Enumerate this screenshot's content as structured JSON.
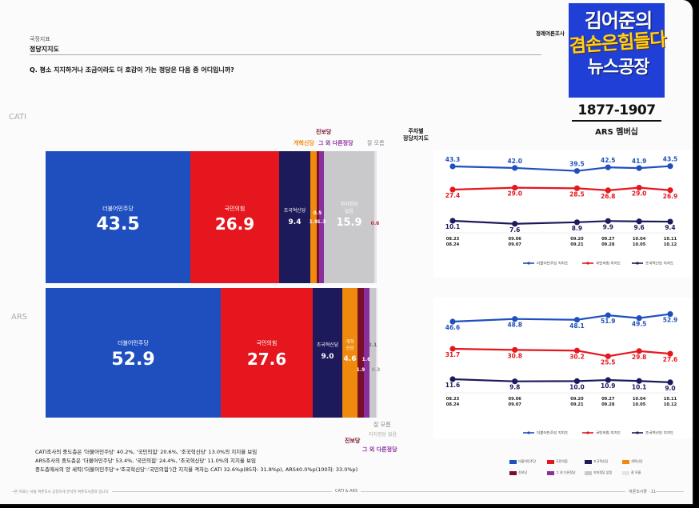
{
  "header": {
    "category": "국정지표",
    "title": "정당지지도",
    "question": "Q. 평소 지지하거나 조금이라도 더 호감이 가는 정당은 다음 중 어디입니까?",
    "source": "정례여론조사"
  },
  "logo": {
    "line1": "김어준의",
    "line2": "겸손은힘들다",
    "line3": "뉴스공장",
    "range": "1877-1907",
    "sub": "ARS 멤버십"
  },
  "sections": {
    "cati": "CATI",
    "ars": "ARS",
    "trend_title_line1": "주차별",
    "trend_title_line2": "정당지지도"
  },
  "colors": {
    "dem": "#1f4fbf",
    "ppp": "#e5161e",
    "rebuild": "#1d1a5c",
    "reform": "#f08a0c",
    "progressive": "#7a0f2b",
    "other": "#8a2f9e",
    "none": "#c9c9cc",
    "dk": "#e8e0ea"
  },
  "chart_data": [
    {
      "type": "bar",
      "title": "CATI",
      "orientation": "stacked-horizontal",
      "series": [
        {
          "name": "더불어민주당",
          "value": 43.5
        },
        {
          "name": "국민의힘",
          "value": 26.9
        },
        {
          "name": "조국혁신당",
          "value": 9.4
        },
        {
          "name": "개혁신당",
          "value": 1.9
        },
        {
          "name": "진보당",
          "value": 0.5
        },
        {
          "name": "그 외 다른정당",
          "value": 1.3
        },
        {
          "name": "지지정당 없음",
          "value": 15.9
        },
        {
          "name": "잘 모름",
          "value": 0.6
        }
      ],
      "callouts": {
        "reform": "개혁신당",
        "progressive": "진보당",
        "other": "그 외 다른정당",
        "dk": "잘 모름"
      },
      "big_labels": {
        "dem": "더불어민주당",
        "ppp": "국민의힘",
        "rebuild": "조국혁신당",
        "none_1": "지지정당",
        "none_2": "없음"
      },
      "values_text": {
        "dem": "43.5",
        "ppp": "26.9",
        "rebuild": "9.4",
        "reform": "1.9",
        "progressive": "0.5",
        "other": "1.3",
        "none": "15.9",
        "dk": "0.6"
      }
    },
    {
      "type": "bar",
      "title": "ARS",
      "orientation": "stacked-horizontal",
      "series": [
        {
          "name": "더불어민주당",
          "value": 52.9
        },
        {
          "name": "국민의힘",
          "value": 27.6
        },
        {
          "name": "조국혁신당",
          "value": 9.0
        },
        {
          "name": "개혁신당",
          "value": 4.6
        },
        {
          "name": "진보당",
          "value": 1.9
        },
        {
          "name": "그 외 다른정당",
          "value": 1.6
        },
        {
          "name": "지지정당 없음",
          "value": 2.1
        },
        {
          "name": "잘 모름",
          "value": 0.3
        }
      ],
      "callouts": {
        "progressive": "진보당",
        "other": "그 외 다른정당",
        "dk": "잘 모름",
        "none": "지지정당 없음"
      },
      "big_labels": {
        "dem": "더불어민주당",
        "ppp": "국민의힘",
        "rebuild": "조국혁신당",
        "reform_1": "개혁",
        "reform_2": "신당"
      },
      "values_text": {
        "dem": "52.9",
        "ppp": "27.6",
        "rebuild": "9.0",
        "reform": "4.6",
        "progressive": "1.9",
        "other": "1.6",
        "none": "2.1",
        "dk": "0.3"
      }
    },
    {
      "type": "line",
      "title": "CATI 주차별 정당지지도",
      "categories": [
        "08.23\n08.24",
        "09.06\n09.07",
        "09.20\n09.21",
        "09.27\n09.28",
        "10.04\n10.05",
        "10.11\n10.12"
      ],
      "x": [
        0,
        2,
        4,
        5,
        6,
        7
      ],
      "series": [
        {
          "name": "더불어민주당 지지도",
          "values": [
            43.3,
            42.0,
            39.5,
            42.5,
            41.9,
            43.5
          ]
        },
        {
          "name": "국민의힘 지지도",
          "values": [
            27.4,
            29.0,
            28.5,
            26.8,
            29.0,
            26.9
          ]
        },
        {
          "name": "조국혁신당 지지도",
          "values": [
            10.1,
            7.6,
            8.9,
            9.9,
            9.6,
            9.4
          ]
        }
      ]
    },
    {
      "type": "line",
      "title": "ARS 주차별 정당지지도",
      "categories": [
        "08.23\n08.24",
        "09.06\n09.07",
        "09.20\n09.21",
        "09.27\n09.28",
        "10.04\n10.05",
        "10.11\n10.12"
      ],
      "x": [
        0,
        2,
        4,
        5,
        6,
        7
      ],
      "series": [
        {
          "name": "더불어민주당 지지도",
          "values": [
            46.6,
            48.8,
            48.1,
            51.9,
            49.5,
            52.9
          ]
        },
        {
          "name": "국민의힘 지지도",
          "values": [
            31.7,
            30.8,
            30.2,
            25.5,
            29.8,
            27.6
          ]
        },
        {
          "name": "조국혁신당 지지도",
          "values": [
            11.6,
            9.8,
            10.0,
            10.9,
            10.1,
            9.0
          ]
        }
      ]
    }
  ],
  "notes": [
    "CATI조사의 중도층은 '더불어민주당' 40.2%, '국민의힘' 20.6%, '조국혁신당' 13.0%의 지지율 보임",
    "ARS조사의 중도층은 '더불어민주당' 53.4%, '국민의힘' 24.4%, '조국혁신당' 11.0%의 지지율 보임",
    "중도층에서의 양 세력('더불어민주당'+'조국혁신당':'국민의힘')간 지지율 격차는 CATI 32.6%p(85차: 31.8%p), ARS40.0%p(100차: 33.0%p)"
  ],
  "legend_parties": [
    "더불어민주당",
    "국민의힘",
    "조국혁신당",
    "개혁신당",
    "진보당",
    "그 외 다른정당",
    "지지정당 없음",
    "잘 모름"
  ],
  "footer": {
    "left": "본 자료는 서울 여론조사 공정하게 분석한 여론조사결과 입니다",
    "center": "CATI & ARS",
    "right": "여론조사꽃 · 11"
  }
}
